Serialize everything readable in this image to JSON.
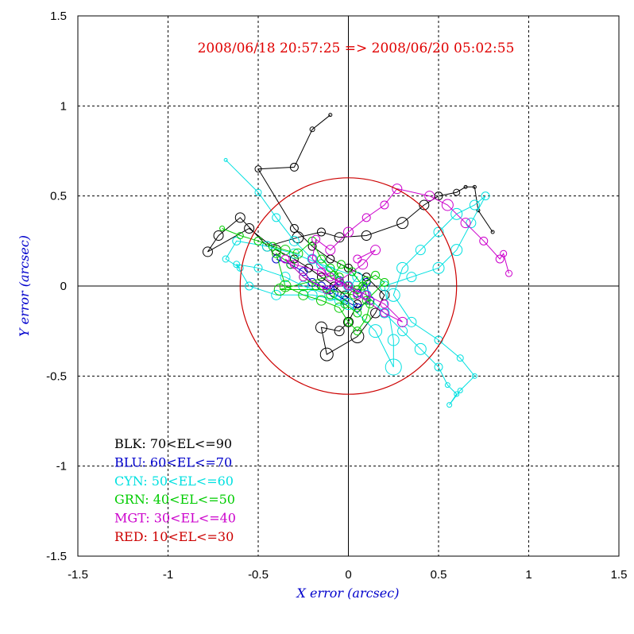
{
  "chart_data": {
    "type": "scatter",
    "title": "2008/06/18 20:57:25 => 2008/06/20 05:02:55",
    "xlabel": "X error (arcsec)",
    "ylabel": "Y error (arcsec)",
    "xlim": [
      -1.5,
      1.5
    ],
    "ylim": [
      -1.5,
      1.5
    ],
    "x_ticks": [
      "-1.5",
      "-1",
      "-0.5",
      "0",
      "0.5",
      "1",
      "1.5"
    ],
    "y_ticks": [
      "-1.5",
      "-1",
      "-0.5",
      "0",
      "0.5",
      "1",
      "1.5"
    ],
    "grid": true,
    "reference_circle": {
      "center": [
        0,
        0
      ],
      "radius": 0.6,
      "color": "#cc0000"
    },
    "legend_position": "bottom-left",
    "legend": [
      {
        "label": "BLK: 70<EL<=90",
        "color": "#000000"
      },
      {
        "label": "BLU: 60<EL<=70",
        "color": "#0000cc"
      },
      {
        "label": "CYN: 50<EL<=60",
        "color": "#00e0e0"
      },
      {
        "label": "GRN: 40<EL<=50",
        "color": "#00cc00"
      },
      {
        "label": "MGT: 30<EL<=40",
        "color": "#cc00cc"
      },
      {
        "label": "RED: 10<EL<=30",
        "color": "#cc0000"
      }
    ],
    "series": [
      {
        "color": "#000000",
        "points": [
          [
            0.8,
            0.3
          ],
          [
            0.72,
            0.42
          ],
          [
            0.7,
            0.55
          ],
          [
            0.65,
            0.55
          ],
          [
            0.6,
            0.52
          ],
          [
            0.5,
            0.5
          ],
          [
            0.42,
            0.45
          ],
          [
            0.3,
            0.35
          ],
          [
            0.1,
            0.28
          ],
          [
            -0.05,
            0.27
          ],
          [
            -0.15,
            0.3
          ],
          [
            -0.28,
            0.27
          ],
          [
            -0.45,
            0.22
          ],
          [
            -0.6,
            0.38
          ],
          [
            -0.72,
            0.28
          ],
          [
            -0.78,
            0.19
          ],
          [
            -0.55,
            0.32
          ],
          [
            -0.4,
            0.2
          ],
          [
            -0.3,
            0.15
          ],
          [
            -0.22,
            0.1
          ],
          [
            -0.15,
            0.05
          ],
          [
            -0.08,
            0.0
          ],
          [
            -0.02,
            -0.05
          ],
          [
            0.05,
            -0.1
          ],
          [
            0.0,
            -0.2
          ],
          [
            -0.05,
            -0.25
          ],
          [
            -0.15,
            -0.23
          ],
          [
            -0.12,
            -0.38
          ],
          [
            0.05,
            -0.28
          ],
          [
            0.15,
            -0.15
          ],
          [
            0.2,
            -0.05
          ],
          [
            0.1,
            0.05
          ],
          [
            0.0,
            0.1
          ],
          [
            -0.1,
            0.15
          ],
          [
            -0.2,
            0.22
          ],
          [
            -0.3,
            0.32
          ],
          [
            -0.5,
            0.65
          ],
          [
            -0.3,
            0.66
          ],
          [
            -0.2,
            0.87
          ],
          [
            -0.1,
            0.95
          ]
        ],
        "sizes": [
          2,
          2,
          2,
          2,
          4,
          5,
          6,
          7,
          6,
          6,
          5,
          7,
          6,
          6,
          6,
          6,
          6,
          6,
          5,
          5,
          5,
          5,
          5,
          5,
          6,
          6,
          7,
          8,
          8,
          6,
          6,
          5,
          5,
          5,
          5,
          5,
          4,
          5,
          3,
          2
        ]
      },
      {
        "color": "#0000cc",
        "points": [
          [
            -0.4,
            0.15
          ],
          [
            -0.32,
            0.12
          ],
          [
            -0.25,
            0.08
          ],
          [
            -0.2,
            0.02
          ],
          [
            -0.15,
            0.0
          ],
          [
            -0.1,
            -0.02
          ],
          [
            -0.05,
            0.03
          ],
          [
            0.0,
            0.0
          ],
          [
            0.05,
            -0.04
          ],
          [
            0.1,
            0.02
          ],
          [
            0.12,
            -0.08
          ],
          [
            0.05,
            -0.12
          ],
          [
            -0.02,
            -0.08
          ],
          [
            -0.08,
            -0.04
          ]
        ],
        "sizes": [
          5,
          5,
          5,
          5,
          5,
          5,
          5,
          5,
          5,
          5,
          5,
          5,
          5,
          5
        ]
      },
      {
        "color": "#00e0e0",
        "points": [
          [
            -0.68,
            0.7
          ],
          [
            -0.5,
            0.52
          ],
          [
            -0.4,
            0.38
          ],
          [
            -0.3,
            0.25
          ],
          [
            -0.2,
            0.15
          ],
          [
            -0.1,
            0.08
          ],
          [
            0.0,
            0.0
          ],
          [
            0.1,
            -0.05
          ],
          [
            0.2,
            -0.15
          ],
          [
            0.3,
            -0.25
          ],
          [
            0.4,
            -0.35
          ],
          [
            0.5,
            -0.45
          ],
          [
            0.55,
            -0.55
          ],
          [
            0.6,
            -0.6
          ],
          [
            0.56,
            -0.66
          ],
          [
            0.62,
            -0.58
          ],
          [
            0.7,
            -0.5
          ],
          [
            0.62,
            -0.4
          ],
          [
            0.5,
            -0.3
          ],
          [
            0.35,
            -0.2
          ],
          [
            0.25,
            -0.05
          ],
          [
            0.3,
            0.1
          ],
          [
            0.4,
            0.2
          ],
          [
            0.5,
            0.3
          ],
          [
            0.6,
            0.4
          ],
          [
            0.7,
            0.45
          ],
          [
            0.76,
            0.5
          ],
          [
            0.68,
            0.35
          ],
          [
            0.6,
            0.2
          ],
          [
            0.5,
            0.1
          ],
          [
            0.35,
            0.05
          ],
          [
            0.2,
            0.0
          ],
          [
            0.25,
            -0.3
          ],
          [
            0.25,
            -0.45
          ],
          [
            0.15,
            -0.25
          ],
          [
            0.0,
            -0.1
          ],
          [
            -0.1,
            -0.05
          ],
          [
            -0.25,
            0.0
          ],
          [
            -0.35,
            0.05
          ],
          [
            -0.5,
            0.1
          ],
          [
            -0.62,
            0.12
          ],
          [
            -0.55,
            0.0
          ],
          [
            -0.4,
            -0.05
          ],
          [
            -0.2,
            -0.05
          ],
          [
            -0.05,
            -0.08
          ],
          [
            0.05,
            0.05
          ],
          [
            -0.15,
            0.12
          ],
          [
            -0.3,
            0.18
          ],
          [
            -0.45,
            0.22
          ],
          [
            -0.62,
            0.25
          ],
          [
            -0.68,
            0.15
          ],
          [
            -0.6,
            0.1
          ]
        ],
        "sizes": [
          2,
          4,
          5,
          6,
          6,
          6,
          6,
          6,
          6,
          6,
          7,
          5,
          3,
          3,
          3,
          3,
          3,
          4,
          5,
          6,
          8,
          7,
          6,
          6,
          7,
          6,
          5,
          6,
          7,
          7,
          6,
          6,
          7,
          10,
          8,
          7,
          7,
          6,
          6,
          5,
          4,
          5,
          6,
          6,
          6,
          6,
          6,
          6,
          6,
          5,
          4,
          4
        ]
      },
      {
        "color": "#00cc00",
        "points": [
          [
            -0.7,
            0.32
          ],
          [
            -0.6,
            0.28
          ],
          [
            -0.5,
            0.25
          ],
          [
            -0.42,
            0.22
          ],
          [
            -0.35,
            0.2
          ],
          [
            -0.28,
            0.18
          ],
          [
            -0.2,
            0.25
          ],
          [
            -0.15,
            0.15
          ],
          [
            -0.1,
            0.1
          ],
          [
            -0.05,
            0.05
          ],
          [
            0.0,
            0.0
          ],
          [
            0.05,
            -0.02
          ],
          [
            0.1,
            0.03
          ],
          [
            0.15,
            0.06
          ],
          [
            0.2,
            0.02
          ],
          [
            0.1,
            -0.08
          ],
          [
            0.05,
            -0.15
          ],
          [
            -0.02,
            -0.1
          ],
          [
            -0.1,
            -0.05
          ],
          [
            -0.18,
            0.0
          ],
          [
            -0.25,
            0.05
          ],
          [
            -0.32,
            0.12
          ],
          [
            -0.4,
            0.18
          ],
          [
            -0.35,
            0.0
          ],
          [
            -0.25,
            -0.05
          ],
          [
            -0.15,
            -0.08
          ],
          [
            -0.05,
            -0.12
          ],
          [
            0.0,
            -0.2
          ],
          [
            0.05,
            -0.25
          ],
          [
            0.1,
            -0.18
          ],
          [
            0.12,
            -0.1
          ],
          [
            0.08,
            0.0
          ],
          [
            0.02,
            0.08
          ],
          [
            -0.04,
            0.12
          ],
          [
            -0.08,
            0.06
          ],
          [
            -0.38,
            -0.02
          ],
          [
            -0.12,
            -0.02
          ],
          [
            0.03,
            -0.05
          ]
        ],
        "sizes": [
          3,
          4,
          5,
          5,
          6,
          6,
          5,
          5,
          5,
          5,
          5,
          5,
          5,
          5,
          5,
          5,
          5,
          5,
          5,
          5,
          5,
          5,
          5,
          7,
          6,
          6,
          6,
          5,
          5,
          5,
          5,
          5,
          5,
          5,
          5,
          7,
          5,
          5
        ]
      },
      {
        "color": "#cc00cc",
        "points": [
          [
            0.89,
            0.07
          ],
          [
            0.86,
            0.18
          ],
          [
            0.84,
            0.15
          ],
          [
            0.75,
            0.25
          ],
          [
            0.65,
            0.35
          ],
          [
            0.55,
            0.45
          ],
          [
            0.45,
            0.5
          ],
          [
            0.27,
            0.54
          ],
          [
            0.2,
            0.45
          ],
          [
            0.1,
            0.38
          ],
          [
            0.0,
            0.3
          ],
          [
            -0.1,
            0.2
          ],
          [
            -0.18,
            0.26
          ],
          [
            -0.2,
            0.15
          ],
          [
            -0.1,
            0.05
          ],
          [
            0.0,
            0.0
          ],
          [
            0.1,
            -0.05
          ],
          [
            0.2,
            -0.1
          ],
          [
            0.3,
            -0.2
          ],
          [
            0.2,
            -0.15
          ],
          [
            0.05,
            -0.05
          ],
          [
            -0.05,
            0.02
          ],
          [
            -0.15,
            0.08
          ],
          [
            -0.3,
            0.12
          ],
          [
            -0.35,
            0.15
          ],
          [
            -0.25,
            0.05
          ],
          [
            -0.12,
            -0.02
          ],
          [
            0.08,
            0.12
          ],
          [
            0.15,
            0.2
          ],
          [
            0.05,
            0.15
          ]
        ],
        "sizes": [
          4,
          4,
          5,
          5,
          6,
          7,
          6,
          6,
          5,
          5,
          6,
          6,
          5,
          5,
          5,
          5,
          5,
          5,
          6,
          5,
          5,
          5,
          5,
          5,
          5,
          5,
          5,
          6,
          6,
          5
        ]
      }
    ]
  }
}
